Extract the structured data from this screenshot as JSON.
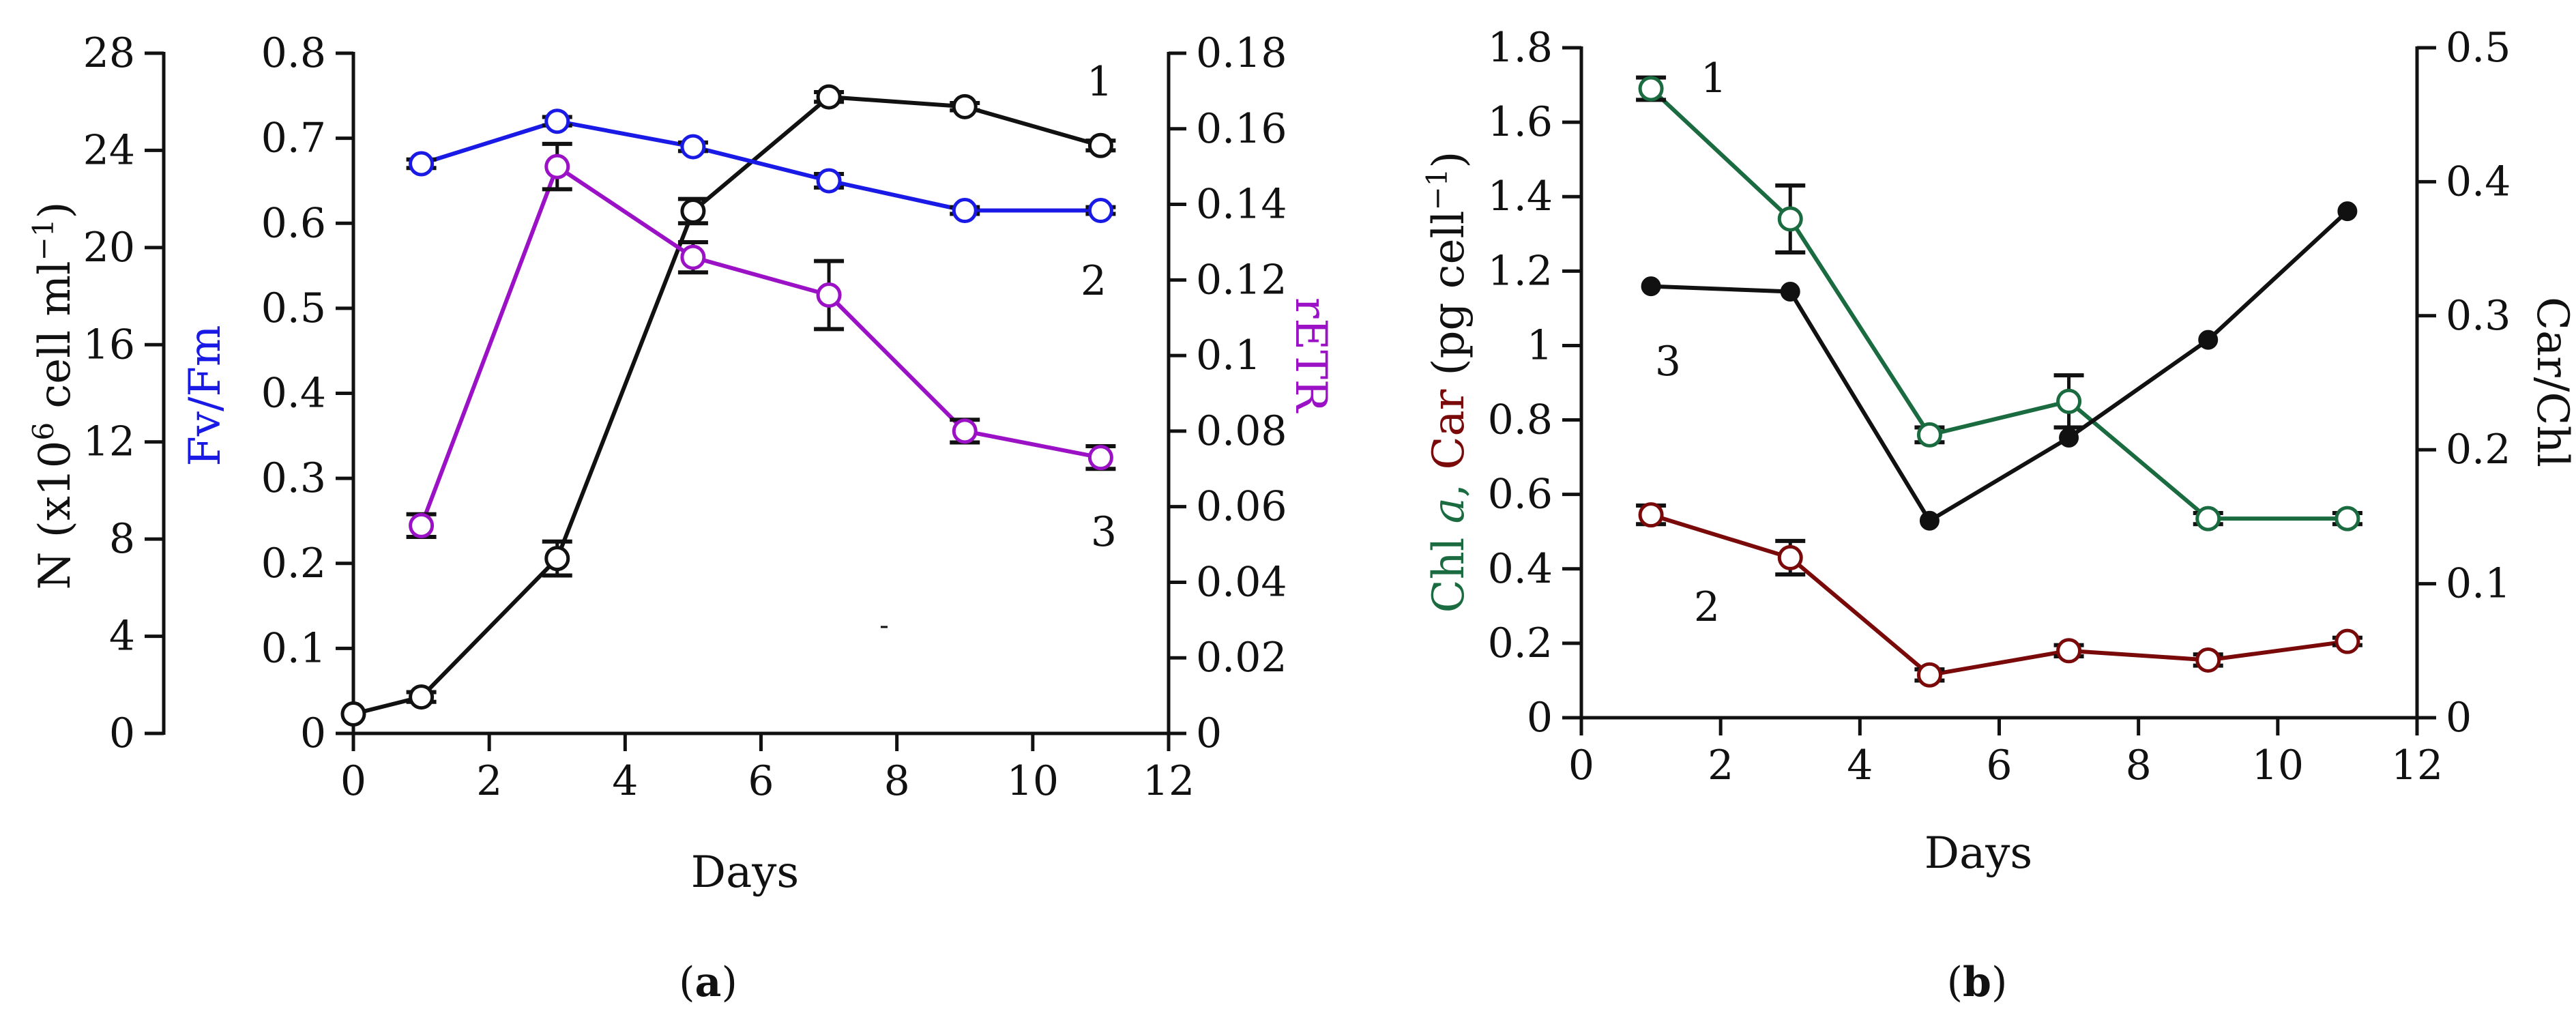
{
  "colors": {
    "axis": "#111111",
    "black_series": "#111111",
    "blue_series": "#1a1ae6",
    "purple_series": "#9b12c6",
    "green_series": "#1a6b3f",
    "darkred_series": "#7a0a0a"
  },
  "chart_data": [
    {
      "panel": "a",
      "panel_label": {
        "open": "(",
        "letter": "a",
        "close": ")"
      },
      "type": "line",
      "xlabel": "Days",
      "xlim": [
        0,
        12
      ],
      "xticks": [
        "0",
        "2",
        "4",
        "6",
        "8",
        "10",
        "12"
      ],
      "axes": {
        "left_outer": {
          "label_parts": [
            "N (x10",
            "6",
            " cell ml",
            "−1",
            ")"
          ],
          "ylim": [
            0,
            28
          ],
          "ticks": [
            "0",
            "4",
            "8",
            "12",
            "16",
            "20",
            "24",
            "28"
          ]
        },
        "left_inner": {
          "label": "Fv/Fm",
          "ylim": [
            0,
            0.8
          ],
          "ticks": [
            "0",
            "0.1",
            "0.2",
            "0.3",
            "0.4",
            "0.5",
            "0.6",
            "0.7",
            "0.8"
          ]
        },
        "right": {
          "label": "rETR",
          "ylim": [
            0,
            0.18
          ],
          "ticks": [
            "0",
            "0.02",
            "0.04",
            "0.06",
            "0.08",
            "0.1",
            "0.12",
            "0.14",
            "0.16",
            "0.18"
          ]
        }
      },
      "series": [
        {
          "curve_label": "1",
          "axis": "left_outer",
          "color": "#111111",
          "marker": "open-circle",
          "x": [
            0,
            1,
            3,
            5,
            7,
            9,
            11
          ],
          "y": [
            0.8,
            1.5,
            7.2,
            21.5,
            26.2,
            25.8,
            24.2
          ],
          "err": [
            0,
            0.2,
            0.7,
            0.5,
            0.2,
            0.15,
            0.2
          ]
        },
        {
          "curve_label": "2",
          "axis": "left_inner",
          "color": "#1a1ae6",
          "marker": "open-circle",
          "x": [
            1,
            3,
            5,
            7,
            9,
            11
          ],
          "y": [
            0.67,
            0.72,
            0.69,
            0.65,
            0.615,
            0.615
          ],
          "err": [
            0.005,
            0.005,
            0.005,
            0.008,
            0.004,
            0.004
          ]
        },
        {
          "curve_label": "3",
          "axis": "right",
          "color": "#9b12c6",
          "marker": "open-circle",
          "x": [
            1,
            3,
            5,
            7,
            9,
            11
          ],
          "y": [
            0.055,
            0.15,
            0.126,
            0.116,
            0.08,
            0.073
          ],
          "err": [
            0.003,
            0.006,
            0.004,
            0.009,
            0.003,
            0.003
          ]
        }
      ],
      "stray_mark": "-"
    },
    {
      "panel": "b",
      "panel_label": {
        "open": "(",
        "letter": "b",
        "close": ")"
      },
      "type": "line",
      "xlabel": "Days",
      "xlim": [
        0,
        12
      ],
      "xticks": [
        "0",
        "2",
        "4",
        "6",
        "8",
        "10",
        "12"
      ],
      "axes": {
        "left": {
          "label_parts": [
            "Chl ",
            "a",
            ", ",
            "Car",
            " (pg cell",
            "−1",
            ")"
          ],
          "ylim": [
            0,
            1.8
          ],
          "ticks": [
            "0",
            "0.2",
            "0.4",
            "0.6",
            "0.8",
            "1",
            "1.2",
            "1.4",
            "1.6",
            "1.8"
          ]
        },
        "right": {
          "label": "Car/Chl",
          "ylim": [
            0,
            0.5
          ],
          "ticks": [
            "0",
            "0.1",
            "0.2",
            "0.3",
            "0.4",
            "0.5"
          ]
        }
      },
      "series": [
        {
          "curve_label": "1",
          "axis": "left",
          "color": "#1a6b3f",
          "marker": "open-circle",
          "x": [
            1,
            3,
            5,
            7,
            9,
            11
          ],
          "y": [
            1.69,
            1.34,
            0.76,
            0.85,
            0.535,
            0.535
          ],
          "err": [
            0.03,
            0.09,
            0.02,
            0.07,
            0.015,
            0.015
          ]
        },
        {
          "curve_label": "2",
          "axis": "left",
          "color": "#7a0a0a",
          "marker": "open-circle",
          "x": [
            1,
            3,
            5,
            7,
            9,
            11
          ],
          "y": [
            0.545,
            0.43,
            0.115,
            0.18,
            0.155,
            0.205
          ],
          "err": [
            0.025,
            0.045,
            0.015,
            0.015,
            0.015,
            0.01
          ]
        },
        {
          "curve_label": "3",
          "axis": "right",
          "color": "#111111",
          "marker": "filled-circle",
          "x": [
            1,
            3,
            5,
            7,
            9,
            11
          ],
          "y": [
            0.322,
            0.318,
            0.147,
            0.209,
            0.282,
            0.378
          ],
          "err": [
            0,
            0,
            0,
            0,
            0,
            0
          ]
        }
      ]
    }
  ]
}
